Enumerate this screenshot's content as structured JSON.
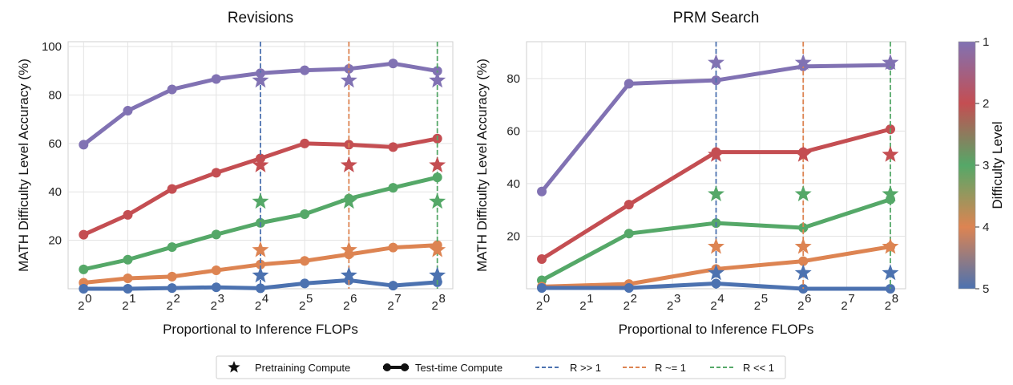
{
  "chart_data": [
    {
      "type": "line",
      "title": "Revisions",
      "xlabel": "Proportional to Inference FLOPs",
      "ylabel": "MATH Difficulty Level Accuracy (%)",
      "x_log2": [
        0,
        1,
        2,
        3,
        4,
        5,
        6,
        7,
        8
      ],
      "x_tick_labels": [
        "0",
        "1",
        "2",
        "3",
        "4",
        "5",
        "6",
        "7",
        "8"
      ],
      "xlim_log2": [
        -0.35,
        8.35
      ],
      "ylim": [
        0,
        102
      ],
      "y_ticks": [
        20,
        40,
        60,
        80,
        100
      ],
      "grid": true,
      "series": [
        {
          "level": 1,
          "color": "#8172B3",
          "x_log2": [
            0,
            1,
            2,
            3,
            4,
            5,
            6,
            7,
            8
          ],
          "values": [
            59.5,
            73.5,
            82.3,
            86.6,
            89.0,
            90.2,
            90.8,
            93.0,
            89.9
          ]
        },
        {
          "level": 2,
          "color": "#C44E52",
          "x_log2": [
            0,
            1,
            2,
            3,
            4,
            5,
            6,
            7,
            8
          ],
          "values": [
            22.3,
            30.5,
            41.2,
            47.9,
            53.8,
            60.0,
            59.5,
            58.5,
            62.0
          ]
        },
        {
          "level": 3,
          "color": "#55A868",
          "x_log2": [
            0,
            1,
            2,
            3,
            4,
            5,
            6,
            7,
            8
          ],
          "values": [
            8.0,
            12.0,
            17.2,
            22.4,
            27.2,
            30.8,
            37.2,
            41.7,
            46.0
          ]
        },
        {
          "level": 4,
          "color": "#DD8452",
          "x_log2": [
            0,
            1,
            2,
            3,
            4,
            5,
            6,
            7,
            8
          ],
          "values": [
            2.5,
            4.3,
            5.0,
            7.6,
            10.0,
            11.5,
            14.2,
            17.0,
            18.0
          ]
        },
        {
          "level": 5,
          "color": "#4C72B0",
          "x_log2": [
            0,
            1,
            2,
            3,
            4,
            5,
            6,
            7,
            8
          ],
          "values": [
            0.0,
            0.0,
            0.3,
            0.6,
            0.2,
            2.2,
            3.5,
            1.3,
            2.7
          ]
        }
      ],
      "pretraining_stars": [
        {
          "level": 1,
          "color": "#8172B3",
          "x_log2": [
            4,
            6,
            8
          ],
          "values": [
            86,
            86,
            86
          ]
        },
        {
          "level": 2,
          "color": "#C44E52",
          "x_log2": [
            4,
            6,
            8
          ],
          "values": [
            51,
            51,
            51
          ]
        },
        {
          "level": 3,
          "color": "#55A868",
          "x_log2": [
            4,
            6,
            8
          ],
          "values": [
            36,
            36,
            36
          ]
        },
        {
          "level": 4,
          "color": "#DD8452",
          "x_log2": [
            4,
            6,
            8
          ],
          "values": [
            16,
            16,
            16
          ]
        },
        {
          "level": 5,
          "color": "#4C72B0",
          "x_log2": [
            4,
            6,
            8
          ],
          "values": [
            5.5,
            5.5,
            5.5
          ]
        }
      ],
      "vlines": [
        {
          "x_log2": 4,
          "color": "#4C72B0"
        },
        {
          "x_log2": 6,
          "color": "#DD8452"
        },
        {
          "x_log2": 8,
          "color": "#55A868"
        }
      ]
    },
    {
      "type": "line",
      "title": "PRM Search",
      "xlabel": "Proportional to Inference FLOPs",
      "ylabel": "MATH Difficulty Level Accuracy (%)",
      "x_log2": [
        0,
        1,
        2,
        3,
        4,
        5,
        6,
        7,
        8
      ],
      "x_tick_labels": [
        "0",
        "1",
        "2",
        "3",
        "4",
        "5",
        "6",
        "7",
        "8"
      ],
      "xlim_log2": [
        -0.35,
        8.35
      ],
      "ylim": [
        0,
        94
      ],
      "y_ticks": [
        20,
        40,
        60,
        80
      ],
      "grid": true,
      "series": [
        {
          "level": 1,
          "color": "#8172B3",
          "x_log2": [
            0,
            2,
            4,
            6,
            8
          ],
          "values": [
            37.0,
            78.0,
            79.3,
            84.6,
            85.1
          ]
        },
        {
          "level": 2,
          "color": "#C44E52",
          "x_log2": [
            0,
            2,
            4,
            6,
            8
          ],
          "values": [
            11.3,
            32.0,
            52.0,
            52.0,
            60.7
          ]
        },
        {
          "level": 3,
          "color": "#55A868",
          "x_log2": [
            0,
            2,
            4,
            6,
            8
          ],
          "values": [
            3.2,
            21.0,
            25.0,
            23.2,
            34.0
          ]
        },
        {
          "level": 4,
          "color": "#DD8452",
          "x_log2": [
            0,
            2,
            4,
            6,
            8
          ],
          "values": [
            0.8,
            1.8,
            7.5,
            10.5,
            16.0
          ]
        },
        {
          "level": 5,
          "color": "#4C72B0",
          "x_log2": [
            0,
            2,
            4,
            6,
            8
          ],
          "values": [
            0.3,
            0.3,
            2.0,
            0.0,
            0.0
          ]
        }
      ],
      "pretraining_stars": [
        {
          "level": 1,
          "color": "#8172B3",
          "x_log2": [
            4,
            6,
            8
          ],
          "values": [
            86,
            86,
            86
          ]
        },
        {
          "level": 2,
          "color": "#C44E52",
          "x_log2": [
            4,
            6,
            8
          ],
          "values": [
            51,
            51,
            51
          ]
        },
        {
          "level": 3,
          "color": "#55A868",
          "x_log2": [
            4,
            6,
            8
          ],
          "values": [
            36,
            36,
            36
          ]
        },
        {
          "level": 4,
          "color": "#DD8452",
          "x_log2": [
            4,
            6,
            8
          ],
          "values": [
            16,
            16,
            16
          ]
        },
        {
          "level": 5,
          "color": "#4C72B0",
          "x_log2": [
            4,
            6,
            8
          ],
          "values": [
            6,
            6,
            6
          ]
        }
      ],
      "vlines": [
        {
          "x_log2": 4,
          "color": "#4C72B0"
        },
        {
          "x_log2": 6,
          "color": "#DD8452"
        },
        {
          "x_log2": 8,
          "color": "#55A868"
        }
      ]
    }
  ],
  "colorbar": {
    "label": "Difficulty Level",
    "ticks": [
      "1",
      "2",
      "3",
      "4",
      "5"
    ],
    "colors": [
      "#8172B3",
      "#C44E52",
      "#55A868",
      "#DD8452",
      "#4C72B0"
    ]
  },
  "legend": {
    "placement": "bottom-center",
    "items": [
      {
        "label": "Pretraining Compute",
        "kind": "star",
        "color": "#111111"
      },
      {
        "label": "Test-time Compute",
        "kind": "line-marker",
        "color": "#111111"
      },
      {
        "label": "R >> 1",
        "kind": "dashed",
        "color": "#4C72B0"
      },
      {
        "label": "R ~= 1",
        "kind": "dashed",
        "color": "#DD8452"
      },
      {
        "label": "R << 1",
        "kind": "dashed",
        "color": "#55A868"
      }
    ]
  }
}
